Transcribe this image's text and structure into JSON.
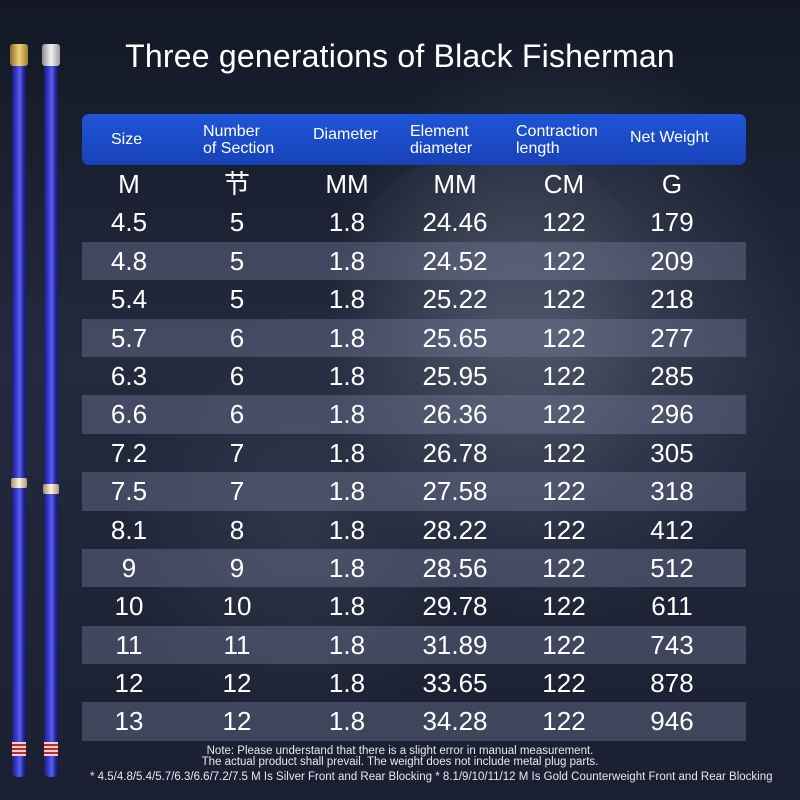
{
  "title": "Three generations of Black Fisherman",
  "colors": {
    "header_blue": "#1f55d8",
    "background": "#1e2436",
    "rod_blue": "#3a3fd0",
    "gold": "#f0d27a"
  },
  "table": {
    "headers": [
      [
        "Size"
      ],
      [
        "Number",
        "of Section"
      ],
      [
        "Diameter"
      ],
      [
        "Element",
        "diameter"
      ],
      [
        "Contraction",
        "length"
      ],
      [
        "Net Weight"
      ]
    ],
    "units": [
      "M",
      "节",
      "MM",
      "MM",
      "CM",
      "G"
    ],
    "rows": [
      [
        "4.5",
        "5",
        "1.8",
        "24.46",
        "122",
        "179"
      ],
      [
        "4.8",
        "5",
        "1.8",
        "24.52",
        "122",
        "209"
      ],
      [
        "5.4",
        "5",
        "1.8",
        "25.22",
        "122",
        "218"
      ],
      [
        "5.7",
        "6",
        "1.8",
        "25.65",
        "122",
        "277"
      ],
      [
        "6.3",
        "6",
        "1.8",
        "25.95",
        "122",
        "285"
      ],
      [
        "6.6",
        "6",
        "1.8",
        "26.36",
        "122",
        "296"
      ],
      [
        "7.2",
        "7",
        "1.8",
        "26.78",
        "122",
        "305"
      ],
      [
        "7.5",
        "7",
        "1.8",
        "27.58",
        "122",
        "318"
      ],
      [
        "8.1",
        "8",
        "1.8",
        "28.22",
        "122",
        "412"
      ],
      [
        "9",
        "9",
        "1.8",
        "28.56",
        "122",
        "512"
      ],
      [
        "10",
        "10",
        "1.8",
        "29.78",
        "122",
        "611"
      ],
      [
        "11",
        "11",
        "1.8",
        "31.89",
        "122",
        "743"
      ],
      [
        "12",
        "12",
        "1.8",
        "33.65",
        "122",
        "878"
      ],
      [
        "13",
        "12",
        "1.8",
        "34.28",
        "122",
        "946"
      ]
    ]
  },
  "notes": {
    "line1": "Note: Please understand that there is a slight error in manual measurement.",
    "line2": "The actual product shall prevail. The weight does not include metal plug parts.",
    "footnote": "* 4.5/4.8/5.4/5.7/6.3/6.6/7.2/7.5 M Is Silver Front and Rear Blocking * 8.1/9/10/11/12 M Is Gold Counterweight Front and Rear Blocking"
  }
}
